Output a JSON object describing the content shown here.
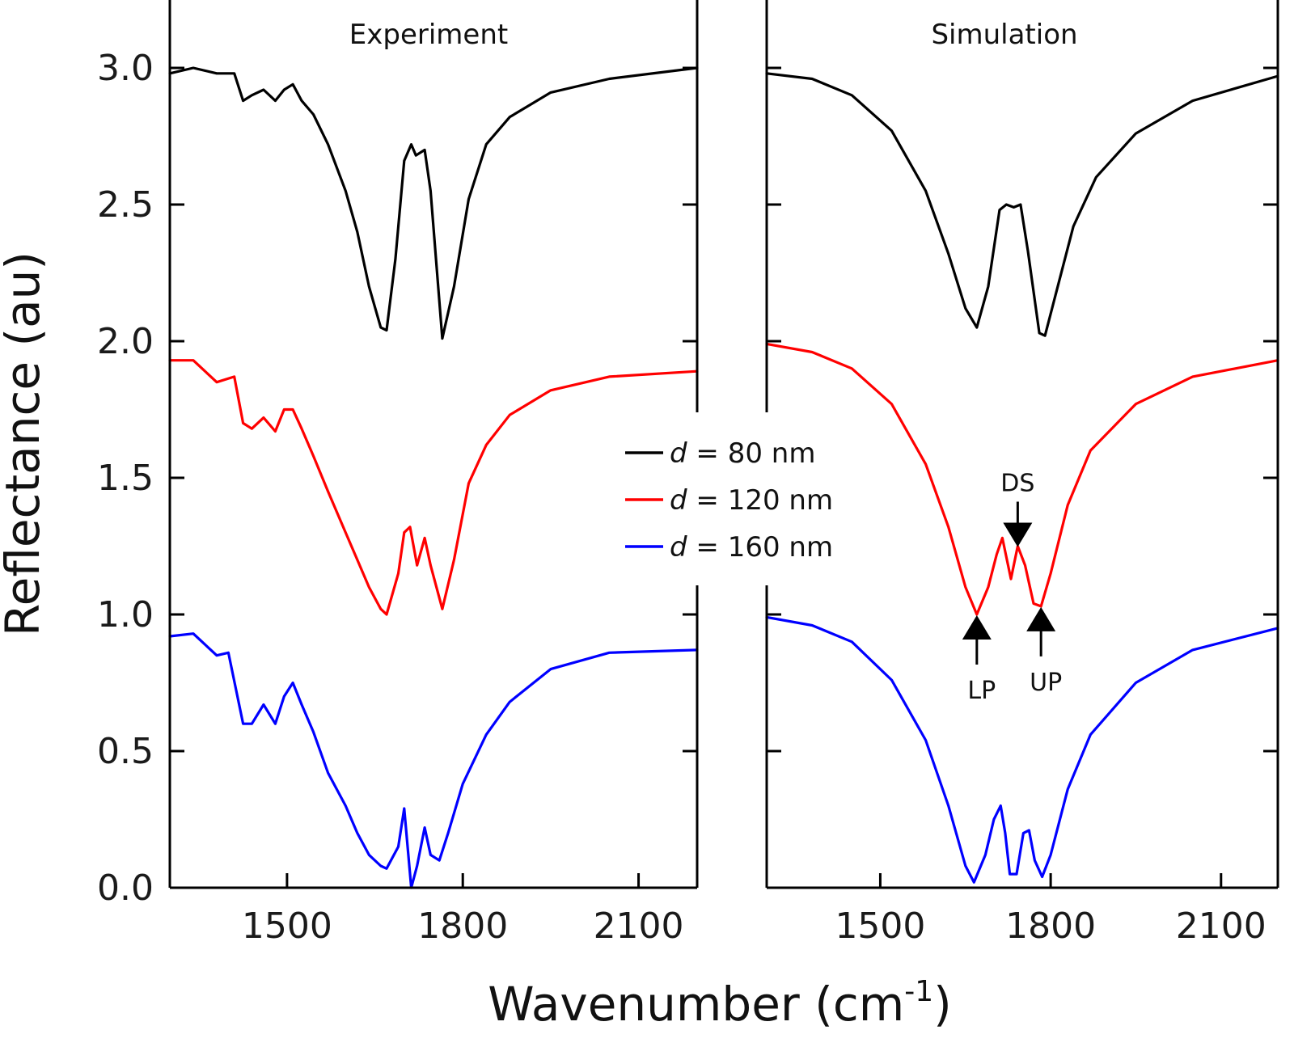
{
  "chart_data": {
    "type": "line",
    "ylabel": "Reflectance (au)",
    "xlabel_main": "Wavenumber (cm",
    "xlabel_sup": "-1",
    "xlabel_close": ")",
    "xlim": [
      1300,
      2200
    ],
    "ylim": [
      0,
      3.25
    ],
    "xticks": [
      1500,
      1800,
      2100
    ],
    "yticks": [
      0.0,
      0.5,
      1.0,
      1.5,
      2.0,
      2.5,
      3.0
    ],
    "ytick_labels": [
      "0.0",
      "0.5",
      "1.0",
      "1.5",
      "2.0",
      "2.5",
      "3.0"
    ],
    "xtick_labels": [
      "1500",
      "1800",
      "2100"
    ],
    "legend": {
      "placement": "center",
      "entries": [
        {
          "italic": "d",
          "text": " = 80 nm",
          "color": "#000000"
        },
        {
          "italic": "d",
          "text": " = 120 nm",
          "color": "#ff0000"
        },
        {
          "italic": "d",
          "text": " = 160 nm",
          "color": "#0000ff"
        }
      ]
    },
    "panels": [
      {
        "title": "Experiment",
        "series": [
          {
            "color": "#000000",
            "x": [
              1300,
              1340,
              1380,
              1410,
              1425,
              1440,
              1460,
              1480,
              1495,
              1510,
              1525,
              1545,
              1570,
              1600,
              1620,
              1640,
              1660,
              1670,
              1685,
              1700,
              1712,
              1720,
              1735,
              1745,
              1765,
              1785,
              1810,
              1840,
              1880,
              1950,
              2050,
              2200
            ],
            "y": [
              2.98,
              3.0,
              2.98,
              2.98,
              2.88,
              2.9,
              2.92,
              2.88,
              2.92,
              2.94,
              2.88,
              2.83,
              2.72,
              2.55,
              2.4,
              2.2,
              2.05,
              2.04,
              2.3,
              2.66,
              2.72,
              2.68,
              2.7,
              2.55,
              2.01,
              2.2,
              2.52,
              2.72,
              2.82,
              2.91,
              2.96,
              3.0
            ]
          },
          {
            "color": "#ff0000",
            "x": [
              1300,
              1340,
              1380,
              1410,
              1425,
              1440,
              1460,
              1480,
              1495,
              1510,
              1525,
              1545,
              1570,
              1600,
              1620,
              1640,
              1660,
              1670,
              1690,
              1700,
              1710,
              1722,
              1735,
              1745,
              1765,
              1785,
              1810,
              1840,
              1880,
              1950,
              2050,
              2200
            ],
            "y": [
              1.93,
              1.93,
              1.85,
              1.87,
              1.7,
              1.68,
              1.72,
              1.67,
              1.75,
              1.75,
              1.68,
              1.58,
              1.45,
              1.3,
              1.2,
              1.1,
              1.02,
              1.0,
              1.15,
              1.3,
              1.32,
              1.18,
              1.28,
              1.18,
              1.02,
              1.2,
              1.48,
              1.62,
              1.73,
              1.82,
              1.87,
              1.89
            ]
          },
          {
            "color": "#0000ff",
            "x": [
              1300,
              1340,
              1380,
              1400,
              1425,
              1440,
              1460,
              1480,
              1495,
              1510,
              1525,
              1545,
              1570,
              1600,
              1620,
              1640,
              1660,
              1670,
              1690,
              1700,
              1712,
              1722,
              1735,
              1745,
              1760,
              1775,
              1800,
              1840,
              1880,
              1950,
              2050,
              2200
            ],
            "y": [
              0.92,
              0.93,
              0.85,
              0.86,
              0.6,
              0.6,
              0.67,
              0.6,
              0.7,
              0.75,
              0.67,
              0.57,
              0.42,
              0.3,
              0.2,
              0.12,
              0.08,
              0.07,
              0.15,
              0.29,
              0.0,
              0.08,
              0.22,
              0.12,
              0.1,
              0.2,
              0.38,
              0.56,
              0.68,
              0.8,
              0.86,
              0.87
            ]
          }
        ]
      },
      {
        "title": "Simulation",
        "series": [
          {
            "color": "#000000",
            "x": [
              1300,
              1380,
              1450,
              1520,
              1580,
              1620,
              1650,
              1670,
              1690,
              1710,
              1722,
              1735,
              1747,
              1760,
              1780,
              1790,
              1810,
              1840,
              1880,
              1950,
              2050,
              2200
            ],
            "y": [
              2.98,
              2.96,
              2.9,
              2.77,
              2.55,
              2.32,
              2.12,
              2.05,
              2.2,
              2.48,
              2.5,
              2.49,
              2.5,
              2.33,
              2.03,
              2.02,
              2.18,
              2.42,
              2.6,
              2.76,
              2.88,
              2.97
            ]
          },
          {
            "color": "#ff0000",
            "x": [
              1300,
              1380,
              1450,
              1520,
              1580,
              1620,
              1650,
              1670,
              1690,
              1705,
              1715,
              1730,
              1742,
              1755,
              1770,
              1783,
              1800,
              1830,
              1870,
              1950,
              2050,
              2200
            ],
            "y": [
              1.99,
              1.96,
              1.9,
              1.77,
              1.55,
              1.32,
              1.1,
              1.0,
              1.1,
              1.22,
              1.28,
              1.13,
              1.25,
              1.18,
              1.04,
              1.03,
              1.15,
              1.4,
              1.6,
              1.77,
              1.87,
              1.93
            ]
          },
          {
            "color": "#0000ff",
            "x": [
              1300,
              1380,
              1450,
              1520,
              1580,
              1620,
              1650,
              1665,
              1685,
              1700,
              1712,
              1720,
              1728,
              1740,
              1752,
              1762,
              1772,
              1785,
              1800,
              1830,
              1870,
              1950,
              2050,
              2200
            ],
            "y": [
              0.99,
              0.96,
              0.9,
              0.76,
              0.54,
              0.3,
              0.08,
              0.02,
              0.12,
              0.25,
              0.3,
              0.2,
              0.05,
              0.05,
              0.2,
              0.21,
              0.1,
              0.04,
              0.12,
              0.36,
              0.56,
              0.75,
              0.87,
              0.95
            ]
          }
        ]
      }
    ],
    "annotations": [
      {
        "label": "DS",
        "direction": "down",
        "x": 1742,
        "y": 1.25
      },
      {
        "label": "LP",
        "direction": "up",
        "x": 1670,
        "y": 1.0
      },
      {
        "label": "UP",
        "direction": "up",
        "x": 1783,
        "y": 1.03
      }
    ]
  }
}
